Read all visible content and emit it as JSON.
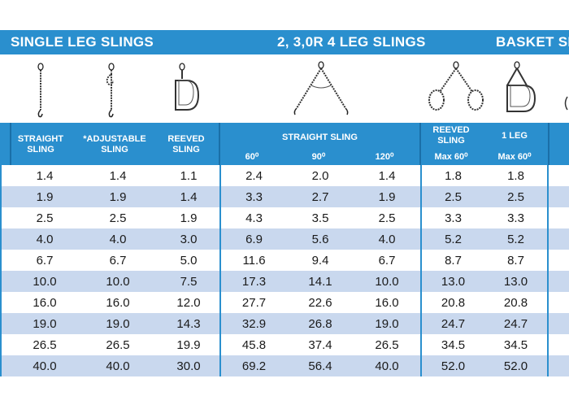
{
  "top_bar": {
    "single_leg_title": "SINGLE LEG SLINGS",
    "multi_leg_title": "2, 3,0R 4 LEG SLINGS",
    "basket_title": "BASKET SL"
  },
  "icons": [
    "straight-sling-icon",
    "adjustable-sling-icon",
    "reeved-sling-icon",
    "two-leg-sling-icon",
    "basket-sling-icon",
    "basket-one-leg-icon"
  ],
  "columns": {
    "straight_sling": "STRAIGHT\nSLING",
    "adjustable_sling": "*ADJUSTABLE\nSLING",
    "reeved_sling": "REEVED\nSLING",
    "multi_straight_group": "STRAIGHT SLING",
    "angle_60": "60⁰",
    "angle_90": "90⁰",
    "angle_120": "120⁰",
    "basket_reeved": "REEVED\nSLING",
    "basket_reeved_sub": "Max 60⁰",
    "basket_1leg": "1 LEG",
    "basket_1leg_sub": "Max 60⁰"
  },
  "rows": [
    [
      "1.4",
      "1.4",
      "1.1",
      "2.4",
      "2.0",
      "1.4",
      "1.8",
      "1.8"
    ],
    [
      "1.9",
      "1.9",
      "1.4",
      "3.3",
      "2.7",
      "1.9",
      "2.5",
      "2.5"
    ],
    [
      "2.5",
      "2.5",
      "1.9",
      "4.3",
      "3.5",
      "2.5",
      "3.3",
      "3.3"
    ],
    [
      "4.0",
      "4.0",
      "3.0",
      "6.9",
      "5.6",
      "4.0",
      "5.2",
      "5.2"
    ],
    [
      "6.7",
      "6.7",
      "5.0",
      "11.6",
      "9.4",
      "6.7",
      "8.7",
      "8.7"
    ],
    [
      "10.0",
      "10.0",
      "7.5",
      "17.3",
      "14.1",
      "10.0",
      "13.0",
      "13.0"
    ],
    [
      "16.0",
      "16.0",
      "12.0",
      "27.7",
      "22.6",
      "16.0",
      "20.8",
      "20.8"
    ],
    [
      "19.0",
      "19.0",
      "14.3",
      "32.9",
      "26.8",
      "19.0",
      "24.7",
      "24.7"
    ],
    [
      "26.5",
      "26.5",
      "19.9",
      "45.8",
      "37.4",
      "26.5",
      "34.5",
      "34.5"
    ],
    [
      "40.0",
      "40.0",
      "30.0",
      "69.2",
      "56.4",
      "40.0",
      "52.0",
      "52.0"
    ]
  ],
  "colors": {
    "accent": "#2a8fce",
    "stripe": "#c9d8ee"
  }
}
